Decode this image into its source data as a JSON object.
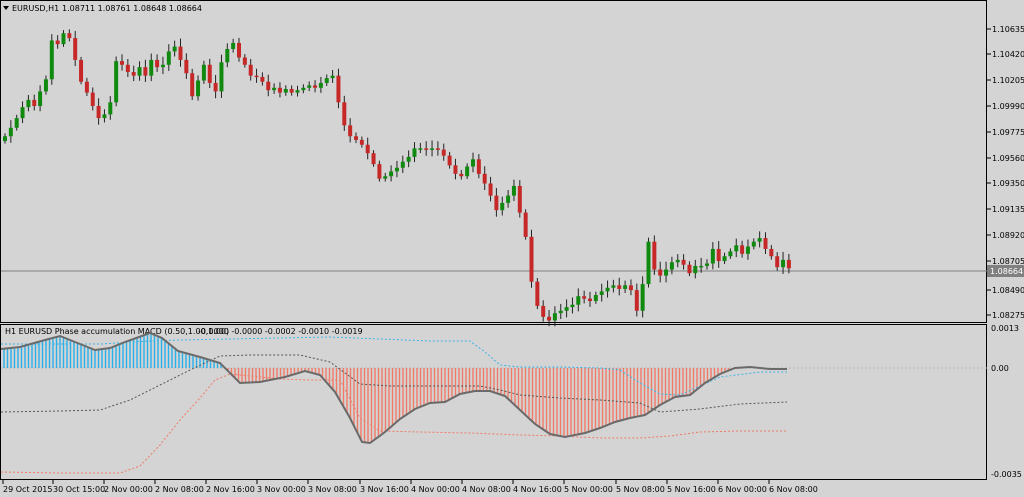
{
  "window": {
    "symbol_title": "EURUSD,H1",
    "ohlc": "1.08711 1.08761 1.08648 1.08664",
    "current_price": "1.08664"
  },
  "price_axis": {
    "labels": [
      "1.10635",
      "1.10420",
      "1.10205",
      "1.09990",
      "1.09775",
      "1.09560",
      "1.09350",
      "1.09135",
      "1.08920",
      "1.08705",
      "1.08490",
      "1.08275"
    ]
  },
  "indicator": {
    "title": "H1 EURUSD Phase accumulation MACD (0.50,1.00,1.00)",
    "values": "-0.0000 -0.0000 -0.0002 -0.0010 -0.0019",
    "axis_labels": [
      "0.0013",
      "0.00",
      "-0.0035"
    ]
  },
  "time_axis": {
    "labels": [
      "29 Oct 2015",
      "30 Oct 15:00",
      "2 Nov 00:00",
      "2 Nov 08:00",
      "2 Nov 16:00",
      "3 Nov 00:00",
      "3 Nov 08:00",
      "3 Nov 16:00",
      "4 Nov 00:00",
      "4 Nov 08:00",
      "4 Nov 16:00",
      "5 Nov 00:00",
      "5 Nov 08:00",
      "5 Nov 16:00",
      "6 Nov 00:00",
      "6 Nov 08:00"
    ]
  },
  "colors": {
    "bull_candle": "#0f8a0f",
    "bear_candle": "#c62828",
    "histogram_up": "#29b0ea",
    "histogram_down": "#f07a66",
    "price_line": "#808080"
  },
  "chart_data": {
    "type": "candlestick",
    "timeframe": "H1",
    "price_range": [
      1.08275,
      1.10635
    ],
    "current_price": 1.08664,
    "close_series_approx": [
      1.0975,
      1.0982,
      1.099,
      1.0999,
      1.1005,
      1.1,
      1.1012,
      1.1022,
      1.1054,
      1.1051,
      1.106,
      1.1056,
      1.1038,
      1.102,
      1.1011,
      1.1,
      1.099,
      1.0993,
      1.1003,
      1.1037,
      1.1034,
      1.1028,
      1.1025,
      1.1032,
      1.1025,
      1.1038,
      1.1032,
      1.1034,
      1.1045,
      1.1049,
      1.1038,
      1.1027,
      1.1008,
      1.1021,
      1.1034,
      1.1019,
      1.1012,
      1.1036,
      1.1047,
      1.1052,
      1.104,
      1.1034,
      1.1025,
      1.1024,
      1.102,
      1.1013,
      1.1015,
      1.1011,
      1.1014,
      1.1011,
      1.1013,
      1.1015,
      1.1017,
      1.1015,
      1.1019,
      1.1023,
      1.1025,
      1.1003,
      1.0984,
      1.0975,
      1.0972,
      1.0968,
      1.0961,
      1.0952,
      1.094,
      1.0942,
      1.0946,
      1.0949,
      1.0954,
      1.0958,
      1.0965,
      1.0965,
      1.0964,
      1.0965,
      1.0964,
      1.0959,
      1.0951,
      1.0944,
      1.0942,
      1.095,
      1.0956,
      1.0944,
      1.0936,
      1.0926,
      1.0914,
      1.092,
      1.0926,
      1.0934,
      1.0912,
      1.0892,
      1.0855,
      1.0835,
      1.0826,
      1.0823,
      1.0829,
      1.0831,
      1.0834,
      1.0836,
      1.0843,
      1.0841,
      1.0839,
      1.0844,
      1.0847,
      1.085,
      1.0852,
      1.0849,
      1.0852,
      1.0848,
      1.0831,
      1.0853,
      1.0888,
      1.0865,
      1.086,
      1.0865,
      1.0871,
      1.0873,
      1.0869,
      1.0862,
      1.0868,
      1.0868,
      1.087,
      1.0882,
      1.0872,
      1.0876,
      1.088,
      1.0885,
      1.0878,
      1.0884,
      1.0888,
      1.0891,
      1.0882,
      1.0876,
      1.0867,
      1.0873,
      1.0866
    ]
  }
}
